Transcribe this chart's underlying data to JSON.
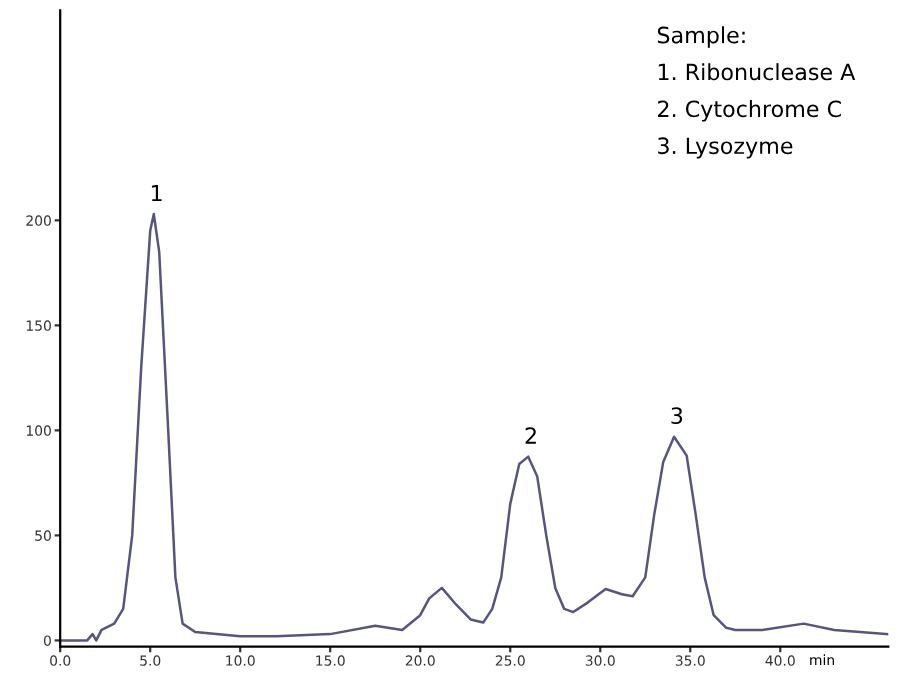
{
  "chart_data": {
    "type": "line",
    "xlabel": "min",
    "series": [
      {
        "color": "#55557f",
        "x": [
          0,
          1.5,
          1.8,
          2.0,
          2.3,
          3.0,
          3.5,
          4.0,
          4.5,
          5.0,
          5.2,
          5.5,
          6.0,
          6.4,
          6.8,
          7.5,
          10,
          12,
          15,
          17.5,
          19,
          20,
          20.5,
          21.2,
          22,
          22.8,
          23.5,
          24,
          24.5,
          25,
          25.5,
          26,
          26.5,
          27,
          27.5,
          28,
          28.5,
          29.3,
          30.3,
          31.2,
          31.8,
          32.5,
          33,
          33.5,
          34.1,
          34.8,
          35.3,
          35.8,
          36.3,
          37,
          37.5,
          39,
          41.3,
          43,
          46
        ],
        "values": [
          0,
          0,
          3,
          0,
          5,
          8,
          15,
          50,
          130,
          195,
          203,
          185,
          100,
          30,
          8,
          4,
          2,
          2,
          3,
          7,
          5,
          12,
          20,
          25,
          17,
          10,
          8.5,
          15,
          30,
          65,
          84,
          87.5,
          78,
          50,
          25,
          15,
          13.5,
          18,
          24.5,
          22,
          21,
          30,
          60,
          85,
          97,
          88,
          60,
          30,
          12,
          6,
          5,
          5,
          8,
          5,
          3
        ]
      }
    ],
    "xlim": [
      0,
      46
    ],
    "ylim": [
      -3,
      300
    ],
    "xticks": [
      {
        "value": 0,
        "label": "0.0"
      },
      {
        "value": 5,
        "label": "5.0"
      },
      {
        "value": 10,
        "label": "10.0"
      },
      {
        "value": 15,
        "label": "15.0"
      },
      {
        "value": 20,
        "label": "20.0"
      },
      {
        "value": 25,
        "label": "25.0"
      },
      {
        "value": 30,
        "label": "30.0"
      },
      {
        "value": 35,
        "label": "35.0"
      },
      {
        "value": 40,
        "label": "40.0"
      }
    ],
    "yticks": [
      0,
      50,
      100,
      150,
      200
    ],
    "grid": false,
    "legend": false,
    "marker": "none",
    "line_style": "solid",
    "annotations": [
      {
        "text": "1",
        "x": 5.2,
        "y": 203
      },
      {
        "text": "2",
        "x": 26,
        "y": 87.5
      },
      {
        "text": "3",
        "x": 34.1,
        "y": 97
      },
      "Sample:",
      "1. Ribonuclease A",
      "2. Cytochrome C",
      "3. Lysozyme"
    ]
  }
}
